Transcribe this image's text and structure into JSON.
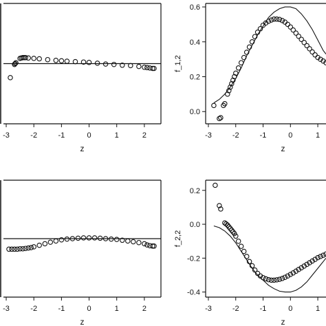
{
  "chart_data": [
    {
      "type": "scatter",
      "xlabel": "z",
      "ylabel": "",
      "xlim": [
        -3.1,
        2.6
      ],
      "ylim": [
        -0.15,
        0.15
      ],
      "x_ticks": [
        "-3",
        "-2",
        "-1",
        "0",
        "1",
        "2"
      ],
      "y_ticks": [],
      "hline": 0,
      "points": {
        "x": [
          -2.85,
          -2.7,
          -2.68,
          -2.65,
          -2.5,
          -2.45,
          -2.4,
          -2.35,
          -2.3,
          -2.2,
          -2.0,
          -1.8,
          -1.5,
          -1.2,
          -1.0,
          -0.8,
          -0.5,
          -0.2,
          0.0,
          0.3,
          0.6,
          0.9,
          1.2,
          1.5,
          1.8,
          2.0,
          2.1,
          2.2,
          2.3,
          2.35
        ],
        "y": [
          -0.035,
          -0.002,
          0.0,
          0.002,
          0.013,
          0.014,
          0.015,
          0.015,
          0.015,
          0.014,
          0.013,
          0.012,
          0.01,
          0.008,
          0.007,
          0.006,
          0.005,
          0.004,
          0.003,
          0.001,
          -0.001,
          -0.002,
          -0.004,
          -0.005,
          -0.007,
          -0.009,
          -0.01,
          -0.011,
          -0.012,
          -0.012
        ]
      }
    },
    {
      "type": "scatter",
      "xlabel": "z",
      "ylabel": "f_1,2",
      "xlim": [
        -3.1,
        1.3
      ],
      "ylim": [
        -0.07,
        0.62
      ],
      "x_ticks": [
        "-3",
        "-2",
        "-1",
        "0",
        "1"
      ],
      "y_ticks": [
        "0.0",
        "0.2",
        "0.4",
        "0.6"
      ],
      "line": {
        "x": [
          -2.8,
          -2.6,
          -2.4,
          -2.2,
          -2.0,
          -1.8,
          -1.6,
          -1.4,
          -1.2,
          -1.0,
          -0.8,
          -0.6,
          -0.4,
          -0.2,
          0.0,
          0.2,
          0.4,
          0.6,
          0.8,
          1.0,
          1.2,
          1.3
        ],
        "y": [
          0.05,
          0.07,
          0.1,
          0.14,
          0.19,
          0.25,
          0.32,
          0.38,
          0.44,
          0.49,
          0.54,
          0.57,
          0.59,
          0.6,
          0.6,
          0.59,
          0.56,
          0.52,
          0.47,
          0.41,
          0.35,
          0.33
        ]
      },
      "points": {
        "x": [
          -2.8,
          -2.6,
          -2.55,
          -2.45,
          -2.4,
          -2.3,
          -2.25,
          -2.2,
          -2.15,
          -2.1,
          -2.05,
          -2.0,
          -1.9,
          -1.8,
          -1.7,
          -1.6,
          -1.5,
          -1.4,
          -1.3,
          -1.2,
          -1.1,
          -1.0,
          -0.9,
          -0.8,
          -0.7,
          -0.6,
          -0.5,
          -0.4,
          -0.3,
          -0.2,
          -0.1,
          0.0,
          0.1,
          0.2,
          0.3,
          0.4,
          0.5,
          0.6,
          0.7,
          0.8,
          0.9,
          1.0,
          1.1,
          1.2,
          1.3
        ],
        "y": [
          0.035,
          -0.04,
          -0.035,
          0.035,
          0.045,
          0.1,
          0.12,
          0.14,
          0.16,
          0.18,
          0.2,
          0.22,
          0.25,
          0.28,
          0.31,
          0.34,
          0.37,
          0.4,
          0.43,
          0.455,
          0.475,
          0.495,
          0.508,
          0.518,
          0.525,
          0.53,
          0.53,
          0.528,
          0.522,
          0.513,
          0.5,
          0.485,
          0.468,
          0.45,
          0.432,
          0.414,
          0.396,
          0.378,
          0.36,
          0.342,
          0.325,
          0.31,
          0.3,
          0.29,
          0.28
        ]
      }
    },
    {
      "type": "scatter",
      "xlabel": "z",
      "ylabel": "",
      "xlim": [
        -3.1,
        2.6
      ],
      "ylim": [
        -0.15,
        0.15
      ],
      "x_ticks": [
        "-3",
        "-2",
        "-1",
        "0",
        "1",
        "2"
      ],
      "y_ticks": [],
      "hline": 0,
      "points": {
        "x": [
          -2.9,
          -2.8,
          -2.7,
          -2.6,
          -2.5,
          -2.4,
          -2.3,
          -2.2,
          -2.1,
          -2.0,
          -1.8,
          -1.6,
          -1.4,
          -1.2,
          -1.0,
          -0.8,
          -0.6,
          -0.4,
          -0.2,
          0.0,
          0.2,
          0.4,
          0.6,
          0.8,
          1.0,
          1.2,
          1.4,
          1.6,
          1.8,
          2.0,
          2.1,
          2.2,
          2.3,
          2.35
        ],
        "y": [
          -0.027,
          -0.027,
          -0.027,
          -0.027,
          -0.026,
          -0.026,
          -0.025,
          -0.024,
          -0.023,
          -0.021,
          -0.017,
          -0.013,
          -0.009,
          -0.006,
          -0.003,
          -0.001,
          0.0,
          0.001,
          0.002,
          0.002,
          0.002,
          0.001,
          0.0,
          -0.001,
          -0.002,
          -0.004,
          -0.006,
          -0.008,
          -0.01,
          -0.013,
          -0.016,
          -0.018,
          -0.019,
          -0.019
        ]
      }
    },
    {
      "type": "scatter",
      "xlabel": "z",
      "ylabel": "f_2,2",
      "xlim": [
        -3.1,
        1.3
      ],
      "ylim": [
        -0.43,
        0.26
      ],
      "x_ticks": [
        "-3",
        "-2",
        "-1",
        "0",
        "1"
      ],
      "y_ticks": [
        "-0.4",
        "-0.2",
        "0.0",
        "0.2"
      ],
      "line": {
        "x": [
          -2.8,
          -2.6,
          -2.4,
          -2.2,
          -2.0,
          -1.8,
          -1.6,
          -1.4,
          -1.2,
          -1.0,
          -0.8,
          -0.6,
          -0.4,
          -0.2,
          0.0,
          0.2,
          0.4,
          0.6,
          0.8,
          1.0,
          1.2,
          1.3
        ],
        "y": [
          -0.01,
          -0.02,
          -0.04,
          -0.07,
          -0.11,
          -0.16,
          -0.21,
          -0.26,
          -0.3,
          -0.33,
          -0.36,
          -0.38,
          -0.395,
          -0.4,
          -0.4,
          -0.39,
          -0.37,
          -0.34,
          -0.3,
          -0.26,
          -0.22,
          -0.2
        ]
      },
      "points": {
        "x": [
          -2.75,
          -2.6,
          -2.55,
          -2.4,
          -2.35,
          -2.3,
          -2.25,
          -2.2,
          -2.15,
          -2.1,
          -2.05,
          -2.0,
          -1.9,
          -1.8,
          -1.7,
          -1.6,
          -1.5,
          -1.4,
          -1.3,
          -1.2,
          -1.1,
          -1.0,
          -0.9,
          -0.8,
          -0.7,
          -0.6,
          -0.5,
          -0.4,
          -0.3,
          -0.2,
          -0.1,
          0.0,
          0.1,
          0.2,
          0.3,
          0.4,
          0.5,
          0.6,
          0.7,
          0.8,
          0.9,
          1.0,
          1.1,
          1.2,
          1.3
        ],
        "y": [
          0.23,
          0.11,
          0.09,
          0.008,
          0.002,
          -0.005,
          -0.015,
          -0.025,
          -0.035,
          -0.045,
          -0.055,
          -0.07,
          -0.1,
          -0.13,
          -0.16,
          -0.19,
          -0.22,
          -0.245,
          -0.27,
          -0.29,
          -0.305,
          -0.315,
          -0.322,
          -0.327,
          -0.33,
          -0.33,
          -0.328,
          -0.325,
          -0.32,
          -0.313,
          -0.305,
          -0.296,
          -0.287,
          -0.277,
          -0.267,
          -0.257,
          -0.247,
          -0.237,
          -0.227,
          -0.217,
          -0.207,
          -0.197,
          -0.19,
          -0.183,
          -0.176
        ]
      }
    }
  ]
}
